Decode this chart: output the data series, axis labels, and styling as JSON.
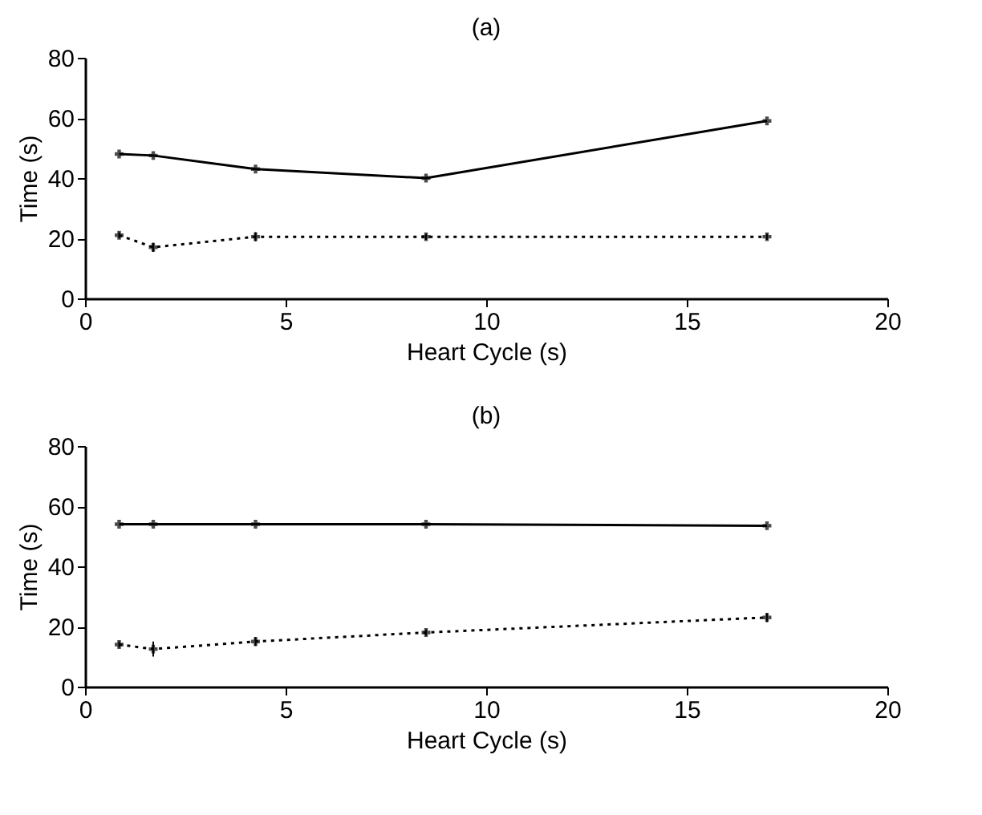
{
  "chart_data": [
    {
      "type": "line",
      "title": "(a)",
      "xlabel": "Heart Cycle (s)",
      "ylabel": "Time (s)",
      "xlim": [
        0,
        20
      ],
      "xticks": [
        0,
        5,
        10,
        15,
        20
      ],
      "ylim": [
        0,
        80
      ],
      "yticks": [
        0,
        20,
        40,
        60,
        80
      ],
      "marker": "cross",
      "grid": false,
      "series": [
        {
          "color": "#000000",
          "line_style": "solid",
          "x": [
            0.85,
            1.7,
            4.25,
            8.5,
            17
          ],
          "values": [
            48,
            47.5,
            43,
            40,
            59
          ]
        },
        {
          "color": "#000000",
          "line_style": "dotted",
          "x": [
            0.85,
            1.7,
            4.25,
            8.5,
            17
          ],
          "values": [
            21,
            17,
            20.5,
            20.5,
            20.5
          ],
          "errors": [
            1,
            1.5,
            1.5,
            1,
            1
          ]
        }
      ]
    },
    {
      "type": "line",
      "title": "(b)",
      "xlabel": "Heart Cycle (s)",
      "ylabel": "Time (s)",
      "xlim": [
        0,
        20
      ],
      "xticks": [
        0,
        5,
        10,
        15,
        20
      ],
      "ylim": [
        0,
        80
      ],
      "yticks": [
        0,
        20,
        40,
        60,
        80
      ],
      "marker": "cross",
      "grid": false,
      "series": [
        {
          "color": "#000000",
          "line_style": "solid",
          "x": [
            0.85,
            1.7,
            4.25,
            8.5,
            17
          ],
          "values": [
            54,
            54,
            54,
            54,
            53.5
          ]
        },
        {
          "color": "#000000",
          "line_style": "dotted",
          "x": [
            0.85,
            1.7,
            4.25,
            8.5,
            17
          ],
          "values": [
            14,
            12.5,
            15,
            18,
            23
          ],
          "errors": [
            1,
            2.5,
            1.5,
            1,
            1.5
          ]
        }
      ]
    }
  ]
}
